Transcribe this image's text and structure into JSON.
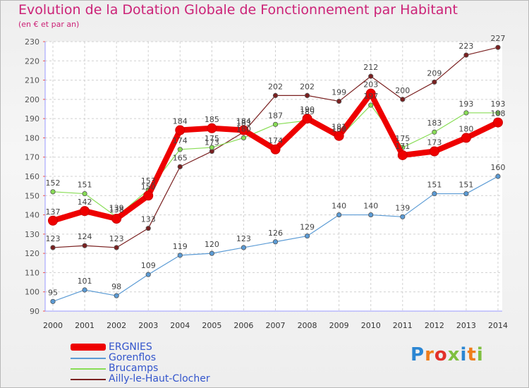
{
  "title": "Evolution de la Dotation Globale de Fonctionnement par Habitant",
  "subtitle": "(en € et par an)",
  "logo": {
    "text": "Proxiti",
    "colors": [
      "#2b86d3",
      "#ef7d1a",
      "#e2312a",
      "#7fbf3f",
      "#2b86d3",
      "#ef7d1a",
      "#7fbf3f"
    ]
  },
  "chart_data": {
    "type": "line",
    "x": [
      "2000",
      "2001",
      "2002",
      "2003",
      "2004",
      "2005",
      "2006",
      "2007",
      "2008",
      "2009",
      "2010",
      "2011",
      "2012",
      "2013",
      "2014"
    ],
    "ylim": [
      90,
      230
    ],
    "yticks": [
      "90",
      "100",
      "110",
      "120",
      "130",
      "140",
      "150",
      "160",
      "170",
      "180",
      "190",
      "200",
      "210",
      "220",
      "230"
    ],
    "grid": true,
    "legend": "bottom-left",
    "series": [
      {
        "name": "ERGNIES",
        "color": "#ee0000",
        "values": [
          137,
          142,
          138,
          150,
          184,
          185,
          184,
          174,
          190,
          181,
          203,
          171,
          173,
          180,
          188
        ]
      },
      {
        "name": "Gorenflos",
        "color": "#5b9bd5",
        "values": [
          95,
          101,
          98,
          109,
          119,
          120,
          123,
          126,
          129,
          140,
          140,
          139,
          151,
          151,
          160
        ]
      },
      {
        "name": "Brucamps",
        "color": "#88dd55",
        "values": [
          152,
          151,
          139,
          153,
          174,
          175,
          180,
          187,
          189,
          180,
          197,
          175,
          183,
          193,
          193
        ]
      },
      {
        "name": "Ailly-le-Haut-Clocher",
        "color": "#7a2020",
        "values": [
          123,
          124,
          123,
          133,
          165,
          173,
          183,
          202,
          202,
          199,
          212,
          200,
          209,
          223,
          227
        ]
      }
    ],
    "data_labels": [
      [
        "137",
        "142",
        "138",
        "150",
        "184",
        "185",
        "184",
        "174",
        "190",
        "181",
        "203",
        "171",
        "173",
        "180",
        "188"
      ],
      [
        "95",
        "101",
        "98",
        "109",
        "119",
        "120",
        "123",
        "126",
        "129",
        "140",
        "140",
        "139",
        "151",
        "151",
        "160"
      ],
      [
        "152",
        "151",
        "139",
        "153",
        "174",
        "175",
        "180",
        "187",
        "189",
        "180",
        "197",
        "175",
        "183",
        "193",
        "193"
      ],
      [
        "123",
        "124",
        "123",
        "133",
        "165",
        "173",
        "183",
        "202",
        "202",
        "199",
        "212",
        "200",
        "209",
        "223",
        "227"
      ]
    ]
  }
}
